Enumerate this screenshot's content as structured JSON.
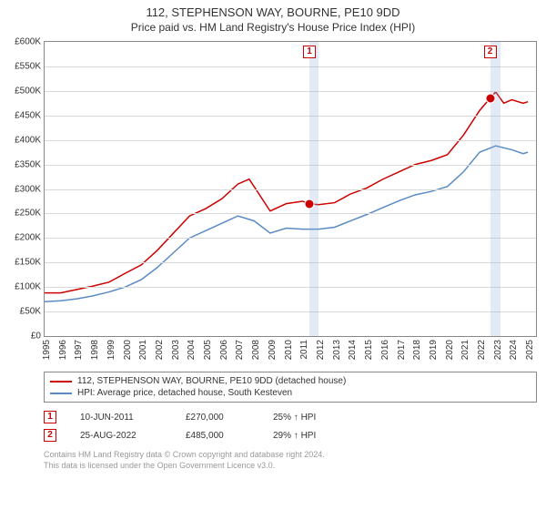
{
  "title": "112, STEPHENSON WAY, BOURNE, PE10 9DD",
  "subtitle": "Price paid vs. HM Land Registry's House Price Index (HPI)",
  "chart": {
    "type": "line",
    "background_color": "#ffffff",
    "grid_color": "#d8d8d8",
    "border_color": "#888888",
    "y": {
      "min": 0,
      "max": 600000,
      "step": 50000,
      "labels": [
        "£0",
        "£50K",
        "£100K",
        "£150K",
        "£200K",
        "£250K",
        "£300K",
        "£350K",
        "£400K",
        "£450K",
        "£500K",
        "£550K",
        "£600K"
      ],
      "label_fontsize": 10
    },
    "x": {
      "min": 1995,
      "max": 2025.5,
      "step": 1,
      "labels": [
        "1995",
        "1996",
        "1997",
        "1998",
        "1999",
        "2000",
        "2001",
        "2002",
        "2003",
        "2004",
        "2005",
        "2006",
        "2007",
        "2008",
        "2009",
        "2010",
        "2011",
        "2012",
        "2013",
        "2014",
        "2015",
        "2016",
        "2017",
        "2018",
        "2019",
        "2020",
        "2021",
        "2022",
        "2023",
        "2024",
        "2025"
      ],
      "label_fontsize": 10
    },
    "shaded_ranges": [
      {
        "from": 2011.44,
        "to": 2012.0,
        "color": "rgba(140,170,220,0.25)"
      },
      {
        "from": 2022.65,
        "to": 2023.3,
        "color": "rgba(140,170,220,0.25)"
      }
    ],
    "series": [
      {
        "name": "112, STEPHENSON WAY, BOURNE, PE10 9DD (detached house)",
        "color": "#cc0000",
        "line_width": 1.5,
        "data": [
          [
            1995,
            88000
          ],
          [
            1996,
            88000
          ],
          [
            1997,
            95000
          ],
          [
            1998,
            102000
          ],
          [
            1999,
            110000
          ],
          [
            2000,
            128000
          ],
          [
            2001,
            145000
          ],
          [
            2002,
            175000
          ],
          [
            2003,
            210000
          ],
          [
            2004,
            245000
          ],
          [
            2005,
            260000
          ],
          [
            2006,
            280000
          ],
          [
            2007,
            310000
          ],
          [
            2007.7,
            320000
          ],
          [
            2008.3,
            290000
          ],
          [
            2009,
            255000
          ],
          [
            2010,
            270000
          ],
          [
            2011,
            275000
          ],
          [
            2011.44,
            270000
          ],
          [
            2012,
            268000
          ],
          [
            2013,
            272000
          ],
          [
            2014,
            290000
          ],
          [
            2015,
            302000
          ],
          [
            2016,
            320000
          ],
          [
            2017,
            335000
          ],
          [
            2018,
            350000
          ],
          [
            2019,
            358000
          ],
          [
            2020,
            370000
          ],
          [
            2021,
            410000
          ],
          [
            2022,
            460000
          ],
          [
            2022.65,
            485000
          ],
          [
            2023,
            498000
          ],
          [
            2023.5,
            475000
          ],
          [
            2024,
            482000
          ],
          [
            2024.7,
            475000
          ],
          [
            2025,
            478000
          ]
        ]
      },
      {
        "name": "HPI: Average price, detached house, South Kesteven",
        "color": "#5b8bc4",
        "line_width": 1.5,
        "data": [
          [
            1995,
            70000
          ],
          [
            1996,
            72000
          ],
          [
            1997,
            76000
          ],
          [
            1998,
            82000
          ],
          [
            1999,
            90000
          ],
          [
            2000,
            100000
          ],
          [
            2001,
            115000
          ],
          [
            2002,
            140000
          ],
          [
            2003,
            170000
          ],
          [
            2004,
            200000
          ],
          [
            2005,
            215000
          ],
          [
            2006,
            230000
          ],
          [
            2007,
            245000
          ],
          [
            2008,
            235000
          ],
          [
            2009,
            210000
          ],
          [
            2010,
            220000
          ],
          [
            2011,
            218000
          ],
          [
            2012,
            218000
          ],
          [
            2013,
            222000
          ],
          [
            2014,
            235000
          ],
          [
            2015,
            248000
          ],
          [
            2016,
            262000
          ],
          [
            2017,
            276000
          ],
          [
            2018,
            288000
          ],
          [
            2019,
            295000
          ],
          [
            2020,
            305000
          ],
          [
            2021,
            335000
          ],
          [
            2022,
            375000
          ],
          [
            2023,
            388000
          ],
          [
            2024,
            380000
          ],
          [
            2024.7,
            372000
          ],
          [
            2025,
            375000
          ]
        ]
      }
    ],
    "sale_markers": [
      {
        "id": "1",
        "x": 2011.44,
        "y": 270000,
        "box_top": true
      },
      {
        "id": "2",
        "x": 2022.65,
        "y": 485000,
        "box_top": true
      }
    ],
    "marker_box_color": "#cc0000",
    "sale_dot_color": "#cc0000"
  },
  "legend": {
    "items": [
      {
        "color": "#cc0000",
        "label": "112, STEPHENSON WAY, BOURNE, PE10 9DD (detached house)"
      },
      {
        "color": "#5b8bc4",
        "label": "HPI: Average price, detached house, South Kesteven"
      }
    ],
    "fontsize": 10
  },
  "sales": [
    {
      "id": "1",
      "date": "10-JUN-2011",
      "price": "£270,000",
      "pct": "25% ↑ HPI"
    },
    {
      "id": "2",
      "date": "25-AUG-2022",
      "price": "£485,000",
      "pct": "29% ↑ HPI"
    }
  ],
  "footer": {
    "line1": "Contains HM Land Registry data © Crown copyright and database right 2024.",
    "line2": "This data is licensed under the Open Government Licence v3.0."
  }
}
